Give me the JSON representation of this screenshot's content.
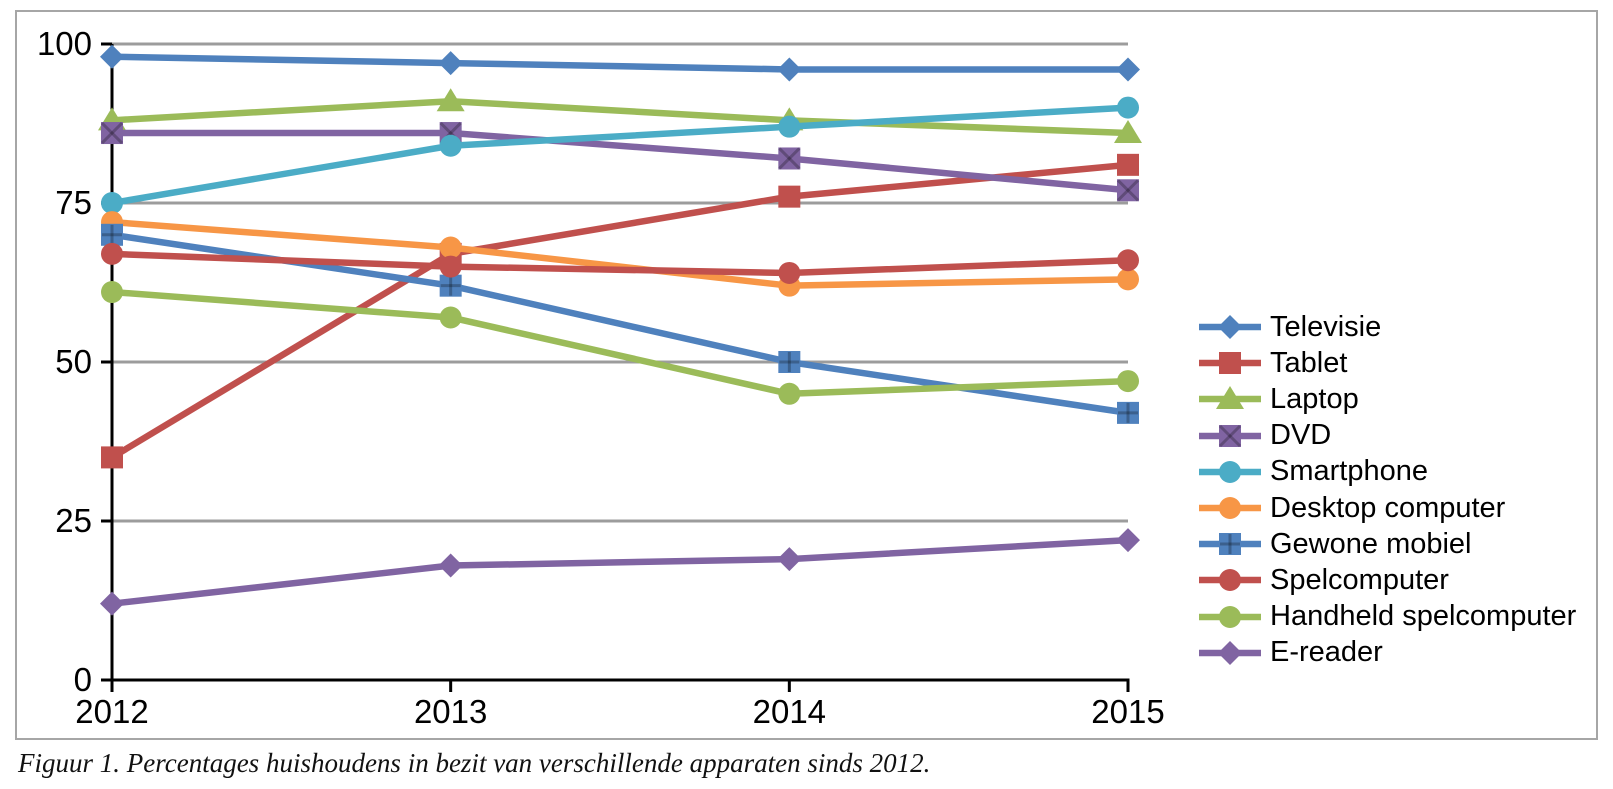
{
  "caption": "Figuur 1. Percentages huishoudens in bezit van verschillende apparaten sinds 2012.",
  "chart_data": {
    "type": "line",
    "categories": [
      "2012",
      "2013",
      "2014",
      "2015"
    ],
    "series": [
      {
        "name": "Televisie",
        "color": "#4F81BD",
        "marker": "diamond",
        "values": [
          98,
          97,
          96,
          96
        ]
      },
      {
        "name": "Tablet",
        "color": "#C0504D",
        "marker": "square",
        "values": [
          35,
          67,
          76,
          81
        ]
      },
      {
        "name": "Laptop",
        "color": "#9BBB59",
        "marker": "triangle",
        "values": [
          88,
          91,
          88,
          86
        ]
      },
      {
        "name": "DVD",
        "color": "#8064A2",
        "marker": "square-x",
        "values": [
          86,
          86,
          82,
          77
        ]
      },
      {
        "name": "Smartphone",
        "color": "#4BACC6",
        "marker": "circle",
        "values": [
          75,
          84,
          87,
          90
        ]
      },
      {
        "name": "Desktop computer",
        "color": "#F79646",
        "marker": "circle",
        "values": [
          72,
          68,
          62,
          63
        ]
      },
      {
        "name": "Gewone mobiel",
        "color": "#4F81BD",
        "marker": "square-plus",
        "values": [
          70,
          62,
          50,
          42
        ]
      },
      {
        "name": "Spelcomputer",
        "color": "#C0504D",
        "marker": "circle",
        "values": [
          67,
          65,
          64,
          66
        ]
      },
      {
        "name": "Handheld spelcomputer",
        "color": "#9BBB59",
        "marker": "circle",
        "values": [
          61,
          57,
          45,
          47
        ]
      },
      {
        "name": "E-reader",
        "color": "#8064A2",
        "marker": "diamond",
        "values": [
          12,
          18,
          19,
          22
        ]
      }
    ],
    "title": "",
    "xlabel": "",
    "ylabel": "",
    "ylim": [
      0,
      100
    ],
    "y_ticks": [
      0,
      25,
      50,
      75,
      100
    ],
    "grid": "horizontal",
    "legend_position": "right",
    "axis_color": "#000000",
    "gridline_color": "#9C9C9C",
    "frame_border_color": "#A6A6A6",
    "marker_inner_line_color": "rgba(0,0,0,0.25)"
  }
}
